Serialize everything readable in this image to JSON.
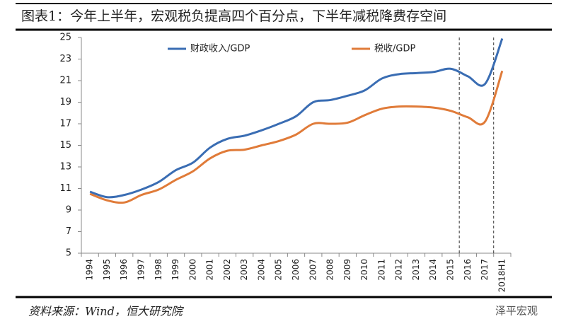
{
  "title": "图表1：今年上半年，宏观税负提高四个百分点，下半年减税降费存空间",
  "source": "资料来源：Wind，恒大研究院",
  "watermark": "泽平宏观",
  "chart_data": {
    "type": "line",
    "categories": [
      "1994",
      "1995",
      "1996",
      "1997",
      "1998",
      "1999",
      "2000",
      "2001",
      "2002",
      "2003",
      "2004",
      "2005",
      "2006",
      "2007",
      "2008",
      "2009",
      "2010",
      "2011",
      "2012",
      "2013",
      "2014",
      "2015",
      "2016",
      "2017",
      "2018H1"
    ],
    "series": [
      {
        "name": "财政收入/GDP",
        "color": "#3a6db3",
        "values": [
          10.7,
          10.2,
          10.4,
          10.9,
          11.6,
          12.7,
          13.4,
          14.8,
          15.6,
          15.9,
          16.4,
          17.0,
          17.7,
          19.0,
          19.2,
          19.6,
          20.1,
          21.2,
          21.6,
          21.7,
          21.8,
          22.1,
          21.4,
          20.7,
          24.9
        ]
      },
      {
        "name": "税收/GDP",
        "color": "#e07b39",
        "values": [
          10.5,
          9.9,
          9.7,
          10.4,
          10.9,
          11.8,
          12.6,
          13.8,
          14.5,
          14.6,
          15.0,
          15.4,
          16.0,
          17.0,
          17.0,
          17.1,
          17.8,
          18.4,
          18.6,
          18.6,
          18.5,
          18.2,
          17.6,
          17.2,
          21.9
        ]
      }
    ],
    "ylim": [
      5,
      25
    ],
    "yticks": [
      5,
      7,
      9,
      11,
      13,
      15,
      17,
      19,
      21,
      23,
      25
    ],
    "grid": false
  }
}
